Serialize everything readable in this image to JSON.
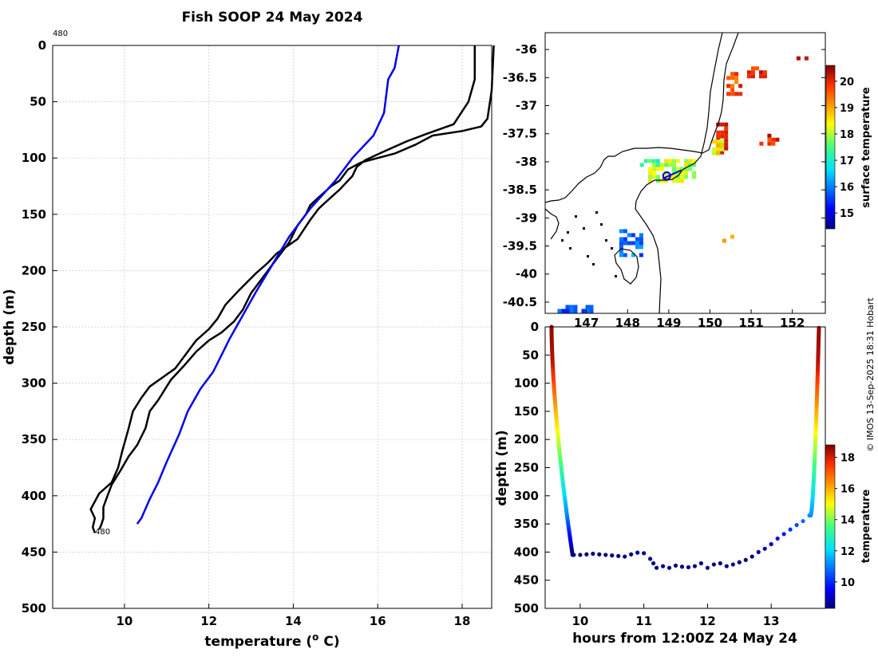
{
  "chart_data": [
    {
      "type": "line",
      "title": "Fish SOOP 24 May 2024",
      "xlabel": "temperature (° C)",
      "xlabel_base": "temperature (",
      "xlabel_unit": "o",
      "xlabel_end": " C)",
      "ylabel": "depth (m)",
      "xlim": [
        8.3,
        18.7
      ],
      "ylim": [
        0,
        500
      ],
      "yreversed": true,
      "xticks": [
        10,
        12,
        14,
        16,
        18
      ],
      "yticks": [
        0,
        50,
        100,
        150,
        200,
        250,
        300,
        350,
        400,
        450,
        500
      ],
      "annotations": [
        {
          "text": "480",
          "x": 8.3,
          "y": -12
        },
        {
          "text": "480",
          "x": 9.3,
          "y": 433
        }
      ],
      "series": [
        {
          "name": "profile-1",
          "color": "#000000",
          "points": [
            [
              18.75,
              0
            ],
            [
              18.7,
              40
            ],
            [
              18.6,
              65
            ],
            [
              18.45,
              72
            ],
            [
              18.0,
              76
            ],
            [
              17.3,
              80
            ],
            [
              16.9,
              88
            ],
            [
              16.4,
              96
            ],
            [
              15.6,
              104
            ],
            [
              15.3,
              110
            ],
            [
              15.1,
              120
            ],
            [
              14.9,
              125
            ],
            [
              14.6,
              135
            ],
            [
              14.4,
              142
            ],
            [
              14.3,
              150
            ],
            [
              14.1,
              160
            ],
            [
              13.9,
              175
            ],
            [
              13.5,
              195
            ],
            [
              13.3,
              205
            ],
            [
              13.0,
              220
            ],
            [
              12.8,
              235
            ],
            [
              12.6,
              245
            ],
            [
              12.3,
              255
            ],
            [
              12.0,
              262
            ],
            [
              11.7,
              272
            ],
            [
              11.4,
              285
            ],
            [
              11.1,
              297
            ],
            [
              11.0,
              303
            ],
            [
              10.8,
              315
            ],
            [
              10.6,
              325
            ],
            [
              10.5,
              340
            ],
            [
              10.3,
              355
            ],
            [
              10.1,
              365
            ],
            [
              9.9,
              378
            ],
            [
              9.7,
              390
            ],
            [
              9.6,
              400
            ],
            [
              9.5,
              410
            ],
            [
              9.5,
              420
            ],
            [
              9.45,
              426
            ],
            [
              9.4,
              430
            ]
          ]
        },
        {
          "name": "profile-2",
          "color": "#000000",
          "points": [
            [
              18.3,
              0
            ],
            [
              18.3,
              30
            ],
            [
              18.15,
              50
            ],
            [
              17.8,
              70
            ],
            [
              17.2,
              78
            ],
            [
              16.7,
              85
            ],
            [
              16.1,
              95
            ],
            [
              15.7,
              102
            ],
            [
              15.5,
              108
            ],
            [
              15.4,
              116
            ],
            [
              15.1,
              128
            ],
            [
              14.8,
              138
            ],
            [
              14.6,
              145
            ],
            [
              14.4,
              155
            ],
            [
              14.1,
              172
            ],
            [
              13.6,
              185
            ],
            [
              13.4,
              193
            ],
            [
              13.1,
              203
            ],
            [
              12.7,
              218
            ],
            [
              12.4,
              230
            ],
            [
              12.2,
              243
            ],
            [
              12.0,
              252
            ],
            [
              11.7,
              262
            ],
            [
              11.5,
              272
            ],
            [
              11.2,
              287
            ],
            [
              10.9,
              295
            ],
            [
              10.6,
              303
            ],
            [
              10.4,
              313
            ],
            [
              10.2,
              325
            ],
            [
              10.1,
              340
            ],
            [
              9.95,
              360
            ],
            [
              9.85,
              375
            ],
            [
              9.7,
              388
            ],
            [
              9.4,
              398
            ],
            [
              9.3,
              405
            ],
            [
              9.2,
              412
            ],
            [
              9.3,
              420
            ],
            [
              9.25,
              428
            ],
            [
              9.3,
              433
            ]
          ]
        },
        {
          "name": "profile-3",
          "color": "#0000ee",
          "points": [
            [
              16.5,
              0
            ],
            [
              16.4,
              20
            ],
            [
              16.25,
              30
            ],
            [
              16.15,
              60
            ],
            [
              15.9,
              80
            ],
            [
              15.4,
              100
            ],
            [
              15.0,
              120
            ],
            [
              14.4,
              145
            ],
            [
              13.9,
              170
            ],
            [
              13.5,
              195
            ],
            [
              13.1,
              220
            ],
            [
              12.8,
              240
            ],
            [
              12.5,
              260
            ],
            [
              12.1,
              290
            ],
            [
              11.8,
              305
            ],
            [
              11.5,
              325
            ],
            [
              11.3,
              345
            ],
            [
              11.0,
              370
            ],
            [
              10.8,
              388
            ],
            [
              10.6,
              403
            ],
            [
              10.4,
              420
            ],
            [
              10.3,
              425
            ]
          ]
        }
      ]
    },
    {
      "type": "heatmap",
      "subtype": "map",
      "x_ticks": [
        147,
        148,
        149,
        150,
        151,
        152
      ],
      "y_ticks": [
        -36,
        -36.5,
        -37,
        -37.5,
        -38,
        -38.5,
        -39,
        -39.5,
        -40,
        -40.5
      ],
      "xlim": [
        146.0,
        152.8
      ],
      "ylim": [
        -40.7,
        -35.7
      ],
      "colorbar": {
        "label": "surface temperature",
        "range": [
          14.4,
          20.6
        ],
        "ticks": [
          20,
          19,
          18,
          17,
          16,
          15
        ]
      },
      "ship_track": [
        [
          148.85,
          -38.3
        ],
        [
          149.3,
          -38.15
        ]
      ],
      "ship_position": [
        148.95,
        -38.25
      ]
    },
    {
      "type": "scatter",
      "xlabel": "hours from 12:00Z 24 May 24",
      "ylabel": "depth (m)",
      "xlim": [
        9.45,
        13.85
      ],
      "ylim": [
        0,
        500
      ],
      "yreversed": true,
      "xticks": [
        10,
        11,
        12,
        13
      ],
      "yticks": [
        0,
        50,
        100,
        150,
        200,
        250,
        300,
        350,
        400,
        450,
        500
      ],
      "colorbar": {
        "label": "temperature",
        "range": [
          8.3,
          18.8
        ],
        "ticks": [
          18,
          16,
          14,
          12,
          10
        ]
      },
      "descent": {
        "start_hour": 9.55,
        "end_hour": 9.88,
        "max_depth": 405
      },
      "bottom_track": [
        [
          9.9,
          405
        ],
        [
          10.0,
          405
        ],
        [
          10.1,
          404
        ],
        [
          10.2,
          403
        ],
        [
          10.3,
          404
        ],
        [
          10.4,
          405
        ],
        [
          10.5,
          406
        ],
        [
          10.6,
          407
        ],
        [
          10.7,
          408
        ],
        [
          10.8,
          404
        ],
        [
          10.9,
          401
        ],
        [
          11.0,
          402
        ],
        [
          11.1,
          412
        ],
        [
          11.15,
          420
        ],
        [
          11.2,
          428
        ],
        [
          11.3,
          425
        ],
        [
          11.4,
          428
        ],
        [
          11.5,
          424
        ],
        [
          11.6,
          426
        ],
        [
          11.7,
          427
        ],
        [
          11.8,
          425
        ],
        [
          11.9,
          420
        ],
        [
          12.0,
          428
        ],
        [
          12.1,
          422
        ],
        [
          12.2,
          420
        ],
        [
          12.3,
          425
        ],
        [
          12.4,
          422
        ],
        [
          12.5,
          418
        ],
        [
          12.6,
          414
        ],
        [
          12.7,
          408
        ],
        [
          12.8,
          400
        ],
        [
          12.9,
          394
        ],
        [
          13.0,
          386
        ],
        [
          13.1,
          376
        ],
        [
          13.2,
          368
        ],
        [
          13.3,
          360
        ],
        [
          13.4,
          352
        ],
        [
          13.5,
          345
        ],
        [
          13.6,
          335
        ]
      ],
      "ascent": {
        "start_hour": 13.62,
        "end_hour": 13.75,
        "min_depth": 0
      }
    }
  ],
  "credit": "© IMOS 13-Sep-2025 18:31 Hobart"
}
